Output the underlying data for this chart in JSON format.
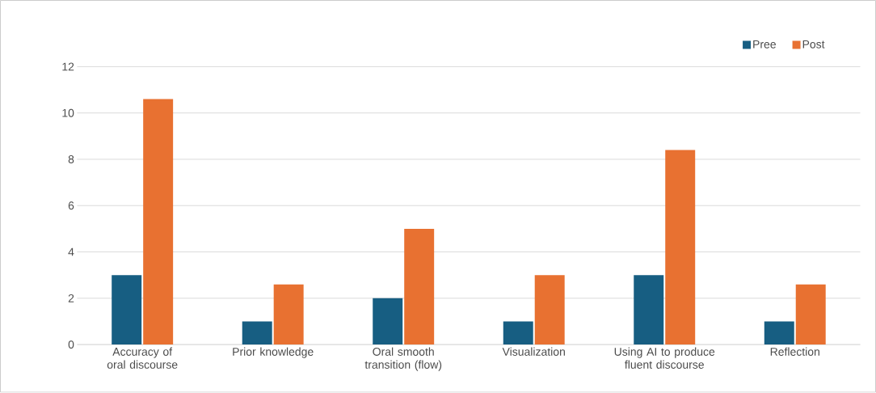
{
  "chart_data": {
    "type": "bar",
    "categories": [
      "Accuracy of oral discourse",
      "Prior knowledge",
      "Oral smooth transition (flow)",
      "Visualization",
      "Using AI to produce fluent discourse",
      "Reflection"
    ],
    "series": [
      {
        "name": "Pree",
        "color": "#175e82",
        "values": [
          3,
          1,
          2,
          1,
          3,
          1
        ]
      },
      {
        "name": "Post",
        "color": "#e87131",
        "values": [
          10.6,
          2.6,
          5,
          3,
          8.4,
          2.6
        ]
      }
    ],
    "ylim": [
      0,
      12
    ],
    "yticks": [
      0,
      2,
      4,
      6,
      8,
      10,
      12
    ],
    "grid": "y",
    "legend": "top right"
  }
}
